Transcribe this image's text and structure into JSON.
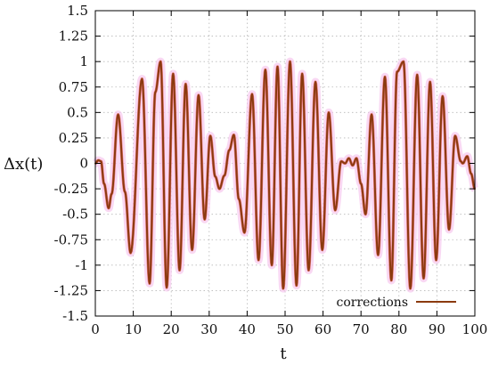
{
  "chart_data": {
    "type": "line",
    "xlabel": "t",
    "ylabel": "Δx(t)",
    "xlim": [
      0,
      100
    ],
    "ylim": [
      -1.5,
      1.5
    ],
    "x_ticks": [
      0,
      10,
      20,
      30,
      40,
      50,
      60,
      70,
      80,
      90,
      100
    ],
    "y_ticks": [
      -1.5,
      -1.25,
      -1,
      -0.75,
      -0.5,
      -0.25,
      0,
      0.25,
      0.5,
      0.75,
      1,
      1.25,
      1.5
    ],
    "grid": true,
    "legend_position": "bottom-right",
    "series": [
      {
        "name": "corrections",
        "color": "#8b3a0f",
        "points": [
          [
            0,
            0
          ],
          [
            0.8,
            0.03
          ],
          [
            1.5,
            0.02
          ],
          [
            2.3,
            -0.2
          ],
          [
            3.5,
            -0.44
          ],
          [
            4.3,
            -0.3
          ],
          [
            6.0,
            0.48
          ],
          [
            7.8,
            -0.28
          ],
          [
            9.3,
            -0.88
          ],
          [
            12.3,
            0.83
          ],
          [
            14.3,
            -1.18
          ],
          [
            15.8,
            0.7
          ],
          [
            17.2,
            1.0
          ],
          [
            18.8,
            -1.22
          ],
          [
            20.5,
            0.88
          ],
          [
            22.2,
            -1.05
          ],
          [
            23.8,
            0.78
          ],
          [
            25.5,
            -0.85
          ],
          [
            27.2,
            0.67
          ],
          [
            28.8,
            -0.55
          ],
          [
            30.3,
            0.27
          ],
          [
            31.6,
            -0.13
          ],
          [
            32.7,
            -0.25
          ],
          [
            34.0,
            -0.12
          ],
          [
            35.3,
            0.13
          ],
          [
            36.5,
            0.28
          ],
          [
            37.8,
            -0.35
          ],
          [
            39.3,
            -0.68
          ],
          [
            41.3,
            0.68
          ],
          [
            43.0,
            -0.95
          ],
          [
            44.8,
            0.92
          ],
          [
            46.5,
            -1.0
          ],
          [
            48.0,
            0.95
          ],
          [
            49.5,
            -1.23
          ],
          [
            51.3,
            1.0
          ],
          [
            53.0,
            -1.2
          ],
          [
            54.5,
            0.88
          ],
          [
            56.2,
            -1.05
          ],
          [
            58.0,
            0.8
          ],
          [
            59.8,
            -0.85
          ],
          [
            61.5,
            0.5
          ],
          [
            63.2,
            -0.46
          ],
          [
            64.8,
            0.02
          ],
          [
            65.8,
            0.0
          ],
          [
            66.8,
            0.05
          ],
          [
            67.8,
            -0.02
          ],
          [
            68.8,
            0.05
          ],
          [
            70.0,
            -0.2
          ],
          [
            71.2,
            -0.5
          ],
          [
            72.8,
            0.48
          ],
          [
            74.5,
            -0.9
          ],
          [
            76.3,
            0.85
          ],
          [
            78.0,
            -1.15
          ],
          [
            79.5,
            0.9
          ],
          [
            81.2,
            1.0
          ],
          [
            83.0,
            -1.23
          ],
          [
            84.8,
            0.87
          ],
          [
            86.5,
            -1.13
          ],
          [
            88.2,
            0.8
          ],
          [
            89.8,
            -0.95
          ],
          [
            91.5,
            0.66
          ],
          [
            93.2,
            -0.65
          ],
          [
            94.8,
            0.27
          ],
          [
            96.3,
            0.02
          ],
          [
            96.8,
            0.0
          ],
          [
            98.0,
            0.07
          ],
          [
            99.0,
            -0.1
          ],
          [
            100,
            -0.25
          ]
        ]
      }
    ]
  }
}
